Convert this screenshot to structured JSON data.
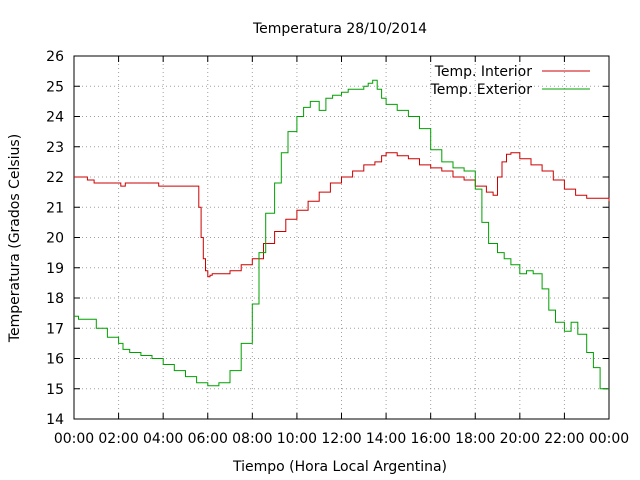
{
  "chart_data": {
    "type": "line",
    "title": "Temperatura 28/10/2014",
    "xlabel": "Tiempo (Hora Local Argentina)",
    "ylabel": "Temperatura (Grados Celsius)",
    "xlim": [
      0,
      24
    ],
    "ylim": [
      14,
      26
    ],
    "x_ticks": [
      0,
      2,
      4,
      6,
      8,
      10,
      12,
      14,
      16,
      18,
      20,
      22,
      24
    ],
    "x_tick_labels": [
      "00:00",
      "02:00",
      "04:00",
      "06:00",
      "08:00",
      "10:00",
      "12:00",
      "14:00",
      "16:00",
      "18:00",
      "20:00",
      "22:00",
      "00:00"
    ],
    "y_ticks": [
      14,
      15,
      16,
      17,
      18,
      19,
      20,
      21,
      22,
      23,
      24,
      25,
      26
    ],
    "grid": true,
    "legend_position": "top-right",
    "series": [
      {
        "name": "Temp. Interior",
        "color": "#cc0000",
        "x": [
          0,
          0.3,
          0.6,
          0.9,
          1.2,
          2.0,
          2.1,
          2.3,
          3.0,
          3.5,
          3.8,
          4.5,
          5.0,
          5.5,
          5.6,
          5.7,
          5.8,
          5.9,
          6.0,
          6.1,
          6.2,
          6.5,
          7.0,
          7.5,
          8.0,
          8.5,
          9.0,
          9.5,
          10.0,
          10.5,
          11.0,
          11.5,
          12.0,
          12.5,
          13.0,
          13.5,
          13.8,
          14.0,
          14.5,
          15.0,
          15.5,
          16.0,
          16.5,
          17.0,
          17.5,
          18.0,
          18.5,
          18.8,
          19.0,
          19.2,
          19.4,
          19.6,
          20.0,
          20.5,
          21.0,
          21.5,
          22.0,
          22.5,
          23.0,
          23.5,
          24.0
        ],
        "y": [
          22.0,
          22.0,
          21.9,
          21.8,
          21.8,
          21.8,
          21.7,
          21.8,
          21.8,
          21.8,
          21.7,
          21.7,
          21.7,
          21.7,
          21.0,
          20.0,
          19.3,
          18.9,
          18.7,
          18.75,
          18.8,
          18.8,
          18.9,
          19.1,
          19.3,
          19.8,
          20.2,
          20.6,
          20.9,
          21.2,
          21.5,
          21.8,
          22.0,
          22.2,
          22.4,
          22.5,
          22.7,
          22.8,
          22.7,
          22.6,
          22.4,
          22.3,
          22.2,
          22.0,
          21.9,
          21.7,
          21.5,
          21.4,
          22.0,
          22.5,
          22.75,
          22.8,
          22.6,
          22.4,
          22.2,
          21.9,
          21.6,
          21.4,
          21.3,
          21.3,
          21.2
        ]
      },
      {
        "name": "Temp. Exterior",
        "color": "#00a000",
        "x": [
          0,
          0.2,
          0.5,
          1.0,
          1.5,
          2.0,
          2.2,
          2.5,
          3.0,
          3.5,
          4.0,
          4.5,
          5.0,
          5.5,
          6.0,
          6.5,
          7.0,
          7.5,
          8.0,
          8.3,
          8.6,
          9.0,
          9.3,
          9.6,
          10.0,
          10.3,
          10.6,
          11.0,
          11.3,
          11.6,
          12.0,
          12.3,
          12.6,
          13.0,
          13.2,
          13.4,
          13.6,
          13.8,
          14.0,
          14.5,
          15.0,
          15.5,
          16.0,
          16.5,
          17.0,
          17.5,
          18.0,
          18.3,
          18.6,
          19.0,
          19.3,
          19.6,
          20.0,
          20.3,
          20.6,
          21.0,
          21.3,
          21.6,
          22.0,
          22.3,
          22.6,
          23.0,
          23.3,
          23.6,
          24.0
        ],
        "y": [
          17.4,
          17.3,
          17.3,
          17.0,
          16.7,
          16.5,
          16.3,
          16.2,
          16.1,
          16.0,
          15.8,
          15.6,
          15.4,
          15.2,
          15.1,
          15.2,
          15.6,
          16.5,
          17.8,
          19.5,
          20.8,
          21.8,
          22.8,
          23.5,
          24.0,
          24.3,
          24.5,
          24.2,
          24.6,
          24.7,
          24.8,
          24.9,
          24.9,
          25.0,
          25.1,
          25.2,
          24.9,
          24.6,
          24.4,
          24.2,
          24.0,
          23.6,
          22.9,
          22.5,
          22.3,
          22.2,
          21.6,
          20.5,
          19.8,
          19.5,
          19.3,
          19.1,
          18.8,
          18.9,
          18.8,
          18.3,
          17.6,
          17.2,
          16.9,
          17.2,
          16.8,
          16.2,
          15.7,
          15.0,
          15.0
        ]
      }
    ]
  }
}
